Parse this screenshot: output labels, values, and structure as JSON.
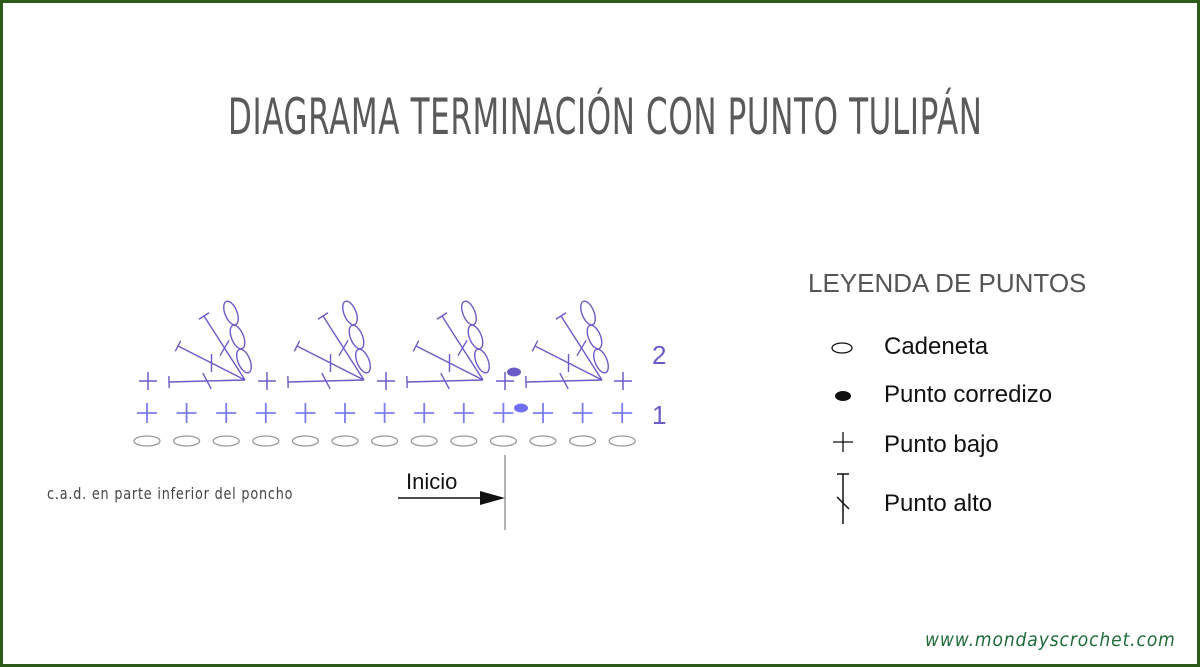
{
  "title": "DIAGRAMA TERMINACIÓN CON PUNTO TULIPÁN",
  "legend": {
    "title": "LEYENDA DE PUNTOS",
    "items": [
      {
        "label": "Cadeneta",
        "icon": "chain-oval-icon"
      },
      {
        "label": "Punto corredizo",
        "icon": "slip-stitch-dot-icon"
      },
      {
        "label": "Punto bajo",
        "icon": "single-crochet-cross-icon"
      },
      {
        "label": "Punto alto",
        "icon": "double-crochet-icon"
      }
    ]
  },
  "diagram": {
    "row_labels": [
      "2",
      "1"
    ],
    "foundation_chains": 13,
    "row1_single_crochets": 13,
    "row2_single_crochets": 5,
    "row2_tulip_fans": 4,
    "start_label": "Inicio",
    "note": "c.a.d. en parte inferior del poncho",
    "colors": {
      "stitch": "#6a5cc8",
      "row1": "#7b7bf0",
      "chain": "#999999",
      "slip_row2": "#6a5cc8",
      "slip_row1": "#6f6ff0"
    }
  },
  "footer": "www.mondayscrochet.com",
  "colors": {
    "border": "#2b5a1a",
    "title": "#5a5a5a",
    "footer": "#1e6b3a"
  }
}
